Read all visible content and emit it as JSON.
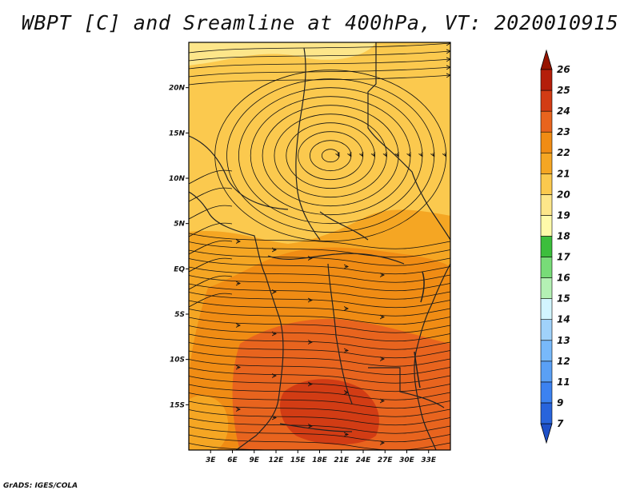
{
  "title": "WBPT [C] and Sreamline at 400hPa, VT: 2020010915",
  "credit": "GrADS: IGES/COLA",
  "map": {
    "lon_range": [
      0,
      36
    ],
    "lat_range": [
      -20,
      25
    ],
    "lon_ticks": [
      3,
      6,
      9,
      12,
      15,
      18,
      21,
      24,
      27,
      30,
      33
    ],
    "lon_tick_labels": [
      "3E",
      "6E",
      "9E",
      "12E",
      "15E",
      "18E",
      "21E",
      "24E",
      "27E",
      "30E",
      "33E"
    ],
    "lat_ticks": [
      20,
      15,
      10,
      5,
      0,
      -5,
      -10,
      -15
    ],
    "lat_tick_labels": [
      "20N",
      "15N",
      "10N",
      "5N",
      "EQ",
      "5S",
      "10S",
      "15S"
    ],
    "cyclone_center": {
      "lon": 19.5,
      "lat": 12.5
    },
    "field_description": "wet-bulb potential temperature with streamlines"
  },
  "colorbar": {
    "levels": [
      "7",
      "9",
      "11",
      "12",
      "13",
      "14",
      "15",
      "16",
      "17",
      "18",
      "19",
      "20",
      "21",
      "22",
      "23",
      "24",
      "25",
      "26"
    ],
    "colors": [
      "#1e50c8",
      "#2864dc",
      "#3c82f0",
      "#5aa0f5",
      "#78b9fa",
      "#a0d2fa",
      "#d2f5ff",
      "#b4f0b4",
      "#78dc78",
      "#3cbe3c",
      "#fffaaa",
      "#fde68a",
      "#fbc94e",
      "#f5a623",
      "#f08c14",
      "#e8641e",
      "#d23c14",
      "#b41e0a",
      "#961400"
    ],
    "extend": "both"
  }
}
